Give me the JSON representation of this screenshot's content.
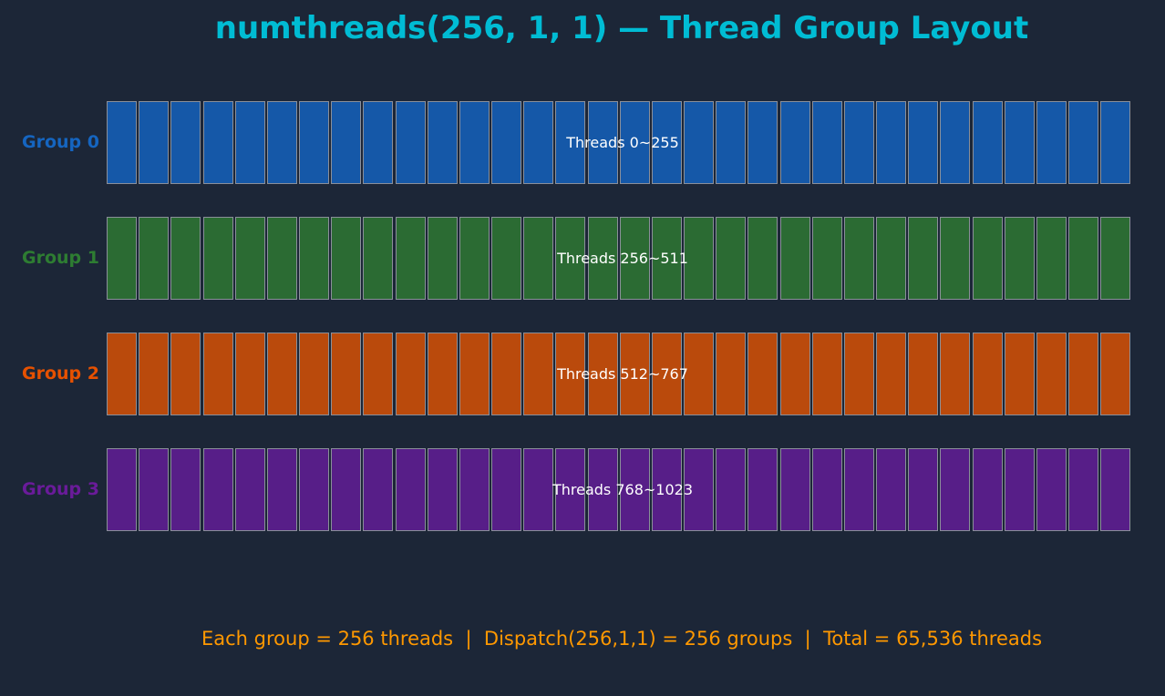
{
  "title": "numthreads(256, 1, 1) — Thread Group Layout",
  "groups": [
    {
      "label": "Group 0",
      "caption": "Threads 0~255",
      "color": "#1558a8",
      "label_color": "#1565c0",
      "cell_count": 32
    },
    {
      "label": "Group 1",
      "caption": "Threads 256~511",
      "color": "#2b6b33",
      "label_color": "#2e7d32",
      "cell_count": 32
    },
    {
      "label": "Group 2",
      "caption": "Threads 512~767",
      "color": "#ba4a0c",
      "label_color": "#e65100",
      "cell_count": 32
    },
    {
      "label": "Group 3",
      "caption": "Threads 768~1023",
      "color": "#571e88",
      "label_color": "#6a1b9a",
      "cell_count": 32
    }
  ],
  "footer": "Each group = 256 threads  |  Dispatch(256,1,1) = 256 groups  |  Total = 65,536 threads"
}
